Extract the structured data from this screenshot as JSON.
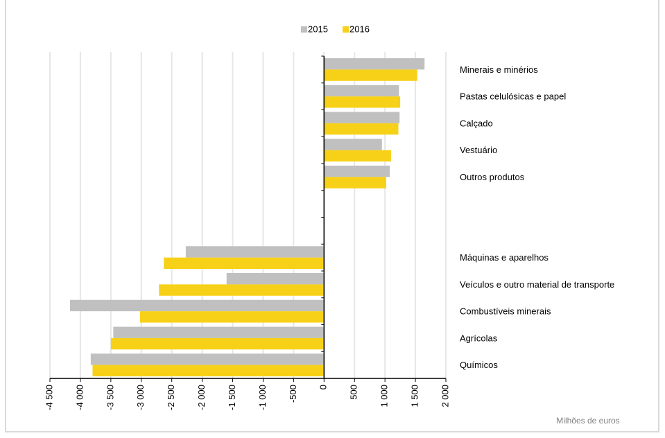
{
  "chart_data": {
    "type": "bar",
    "orientation": "horizontal",
    "categories": [
      "Minerais e minérios",
      "Pastas celulósicas e papel",
      "Calçado",
      "Vestuário",
      "Outros produtos",
      null,
      null,
      "Máquinas e aparelhos",
      "Veículos e outro material de transporte",
      "Combustíveis minerais",
      "Agrícolas",
      "Químicos"
    ],
    "series": [
      {
        "name": "2015",
        "color": "#c0c0c0",
        "values": [
          1650,
          1230,
          1240,
          950,
          1080,
          null,
          null,
          -2270,
          -1600,
          -4170,
          -3460,
          -3830
        ]
      },
      {
        "name": "2016",
        "color": "#f7d117",
        "values": [
          1530,
          1250,
          1220,
          1100,
          1020,
          null,
          null,
          -2630,
          -2710,
          -3020,
          -3500,
          -3800
        ]
      }
    ],
    "xlim": [
      -4500,
      2000
    ],
    "xticks": [
      {
        "value": -4500,
        "label": "-4 500"
      },
      {
        "value": -4000,
        "label": "-4 000"
      },
      {
        "value": -3500,
        "label": "-3 500"
      },
      {
        "value": -3000,
        "label": "-3 000"
      },
      {
        "value": -2500,
        "label": "-2 500"
      },
      {
        "value": -2000,
        "label": "-2 000"
      },
      {
        "value": -1500,
        "label": "-1 500"
      },
      {
        "value": -1000,
        "label": "-1 000"
      },
      -500,
      0,
      500,
      {
        "value": 1000,
        "label": "1 000"
      },
      {
        "value": 1500,
        "label": "1 500"
      },
      {
        "value": 2000,
        "label": "2 000"
      }
    ],
    "grid": true,
    "legend": "top",
    "annotation": "Milhões de euros"
  }
}
